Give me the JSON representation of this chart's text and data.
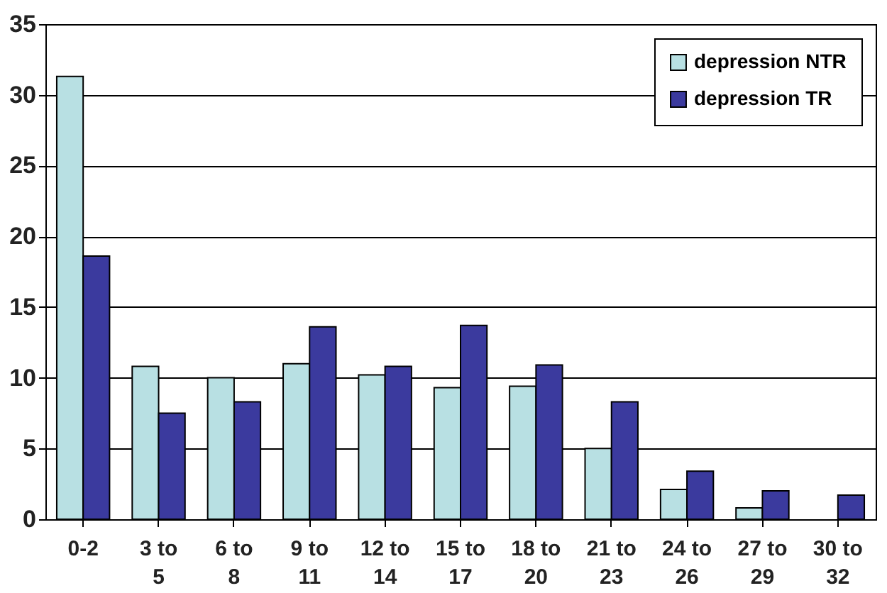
{
  "chart_data": {
    "type": "bar",
    "categories": [
      "0-2",
      "3 to 5",
      "6 to 8",
      "9 to 11",
      "12 to 14",
      "15 to 17",
      "18 to 20",
      "21 to 23",
      "24 to 26",
      "27 to 29",
      "30 to 32"
    ],
    "series": [
      {
        "name": "depression NTR",
        "color": "#b8e0e3",
        "values": [
          31.3,
          10.8,
          10.0,
          11.0,
          10.2,
          9.3,
          9.4,
          5.0,
          2.1,
          0.8,
          0
        ]
      },
      {
        "name": "depression TR",
        "color": "#3b3a9e",
        "values": [
          18.6,
          7.5,
          8.3,
          13.6,
          10.8,
          13.7,
          10.9,
          8.3,
          3.4,
          2.0,
          1.7
        ]
      }
    ],
    "ylim": [
      0,
      35
    ],
    "yticks": [
      0,
      5,
      10,
      15,
      20,
      25,
      30,
      35
    ],
    "grid": "y",
    "legend": "top right"
  }
}
